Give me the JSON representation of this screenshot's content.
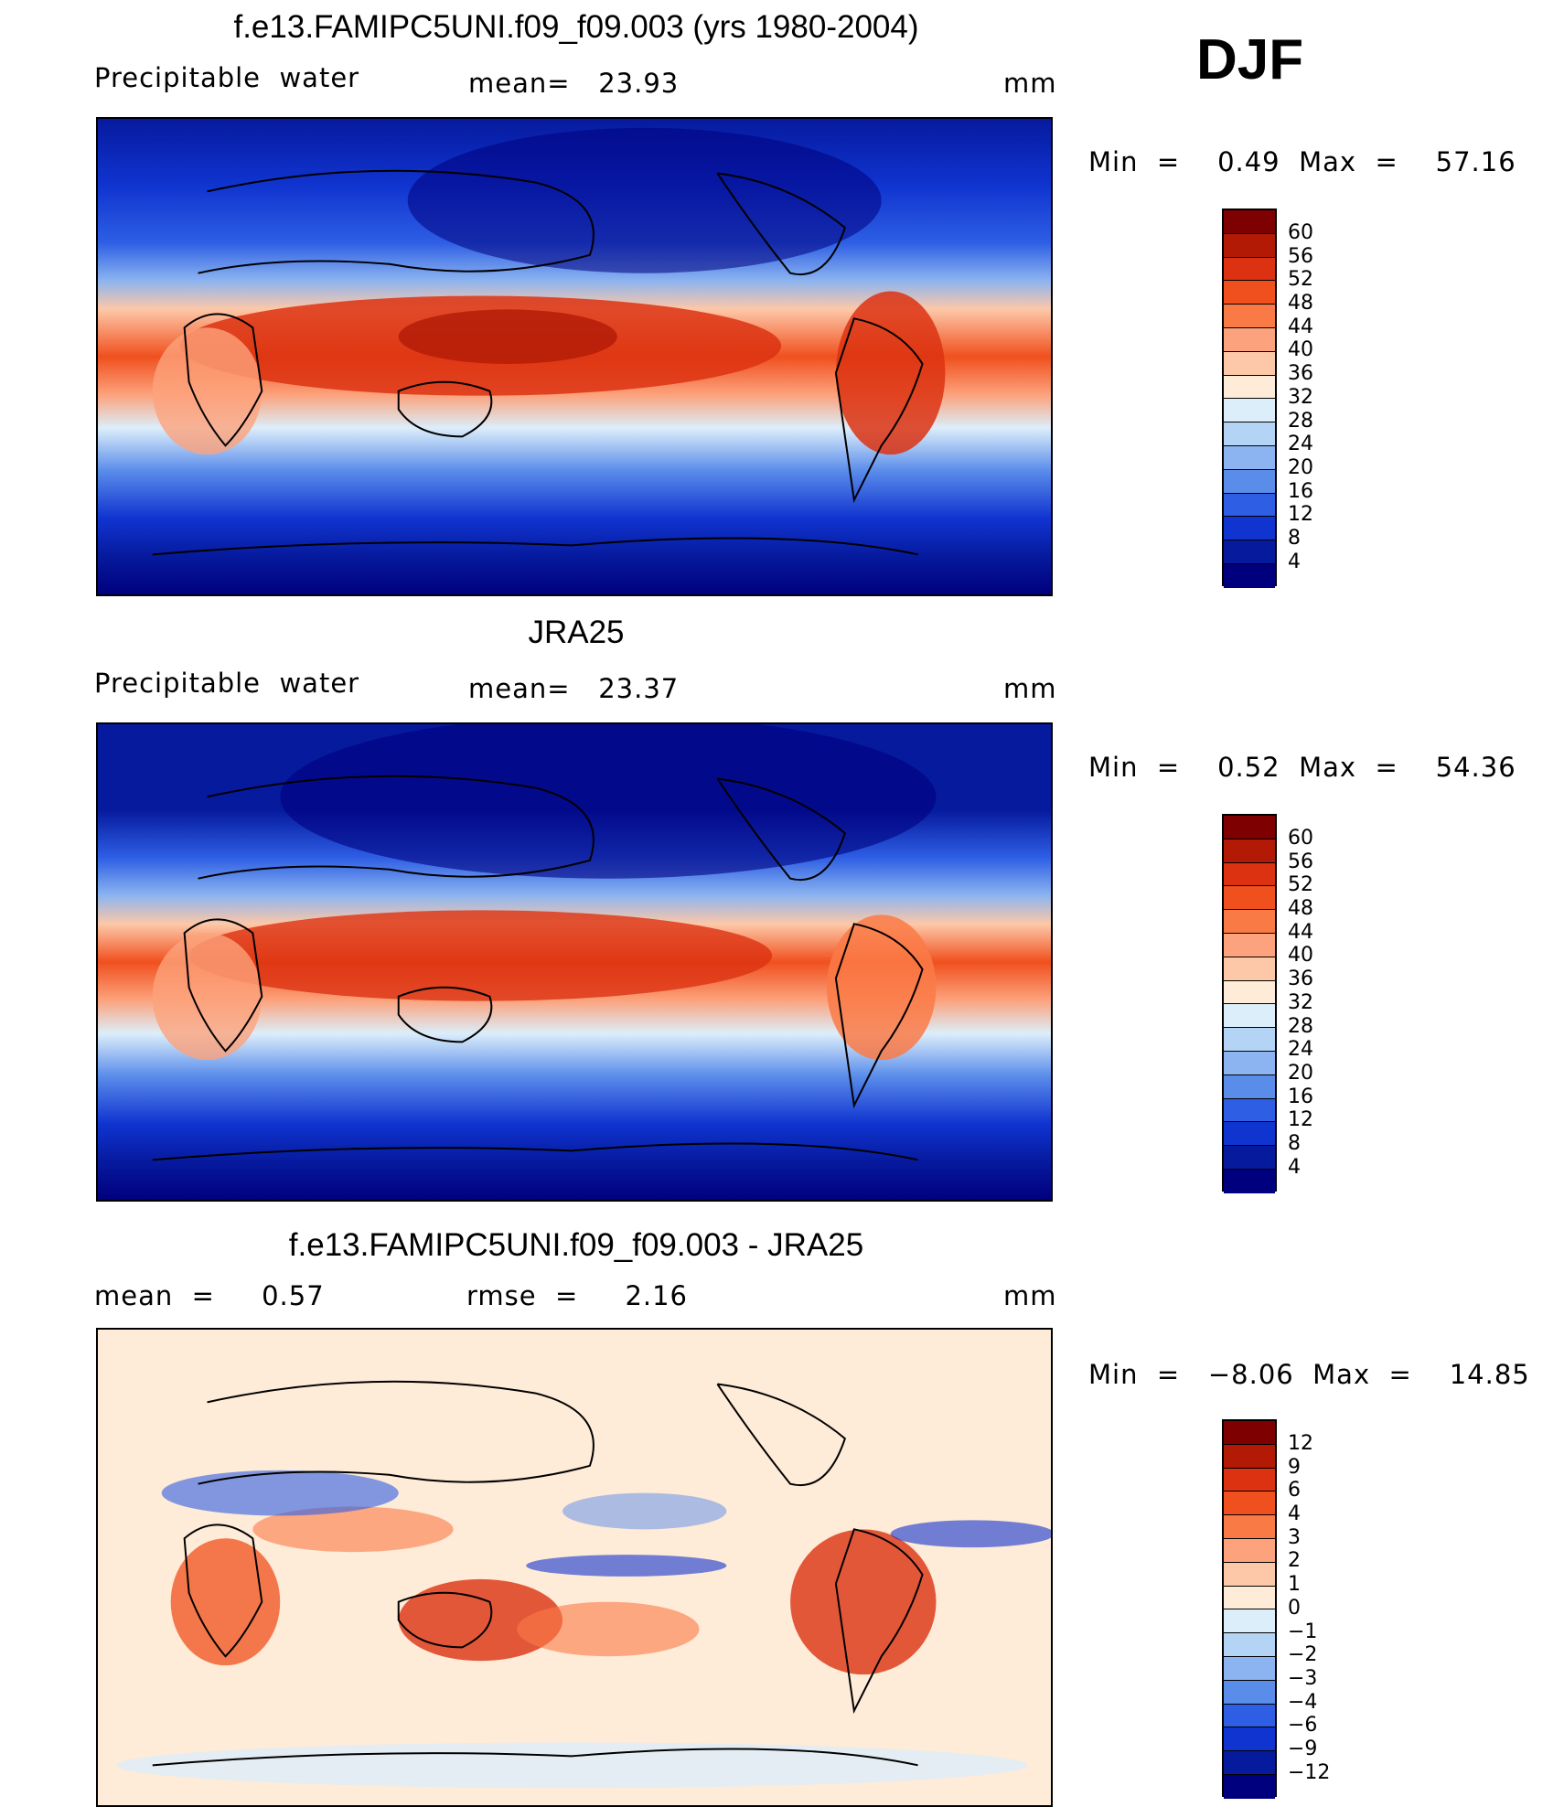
{
  "season_label": "DJF",
  "units_label": "mm",
  "panels": [
    {
      "title": "f.e13.FAMIPC5UNI.f09_f09.003 (yrs 1980-2004)",
      "left_label": "Precipitable  water",
      "center_label": "mean=   23.93",
      "minmax": "Min  =    0.49  Max  =    57.16",
      "colorbar": {
        "levels": [
          "60",
          "56",
          "52",
          "48",
          "44",
          "40",
          "36",
          "32",
          "28",
          "24",
          "20",
          "16",
          "12",
          "8",
          "4"
        ],
        "colors": [
          "#7f0000",
          "#b21a06",
          "#dc3212",
          "#f0501e",
          "#fa7a46",
          "#fca27c",
          "#fdc8a8",
          "#feebd8",
          "#dceefa",
          "#b4d4f5",
          "#8cb4f0",
          "#5a8cea",
          "#2d5ee4",
          "#1034d0",
          "#061a9e",
          "#00007e"
        ]
      }
    },
    {
      "title": "JRA25",
      "left_label": "Precipitable  water",
      "center_label": "mean=   23.37",
      "minmax": "Min  =    0.52  Max  =    54.36",
      "colorbar": {
        "levels": [
          "60",
          "56",
          "52",
          "48",
          "44",
          "40",
          "36",
          "32",
          "28",
          "24",
          "20",
          "16",
          "12",
          "8",
          "4"
        ],
        "colors": [
          "#7f0000",
          "#b21a06",
          "#dc3212",
          "#f0501e",
          "#fa7a46",
          "#fca27c",
          "#fdc8a8",
          "#feebd8",
          "#dceefa",
          "#b4d4f5",
          "#8cb4f0",
          "#5a8cea",
          "#2d5ee4",
          "#1034d0",
          "#061a9e",
          "#00007e"
        ]
      }
    },
    {
      "title": "f.e13.FAMIPC5UNI.f09_f09.003 - JRA25",
      "left_label": "mean  =     0.57",
      "center_label": "rmse  =     2.16",
      "minmax": "Min  =   −8.06  Max  =    14.85",
      "colorbar": {
        "levels": [
          "12",
          "9",
          "6",
          "4",
          "3",
          "2",
          "1",
          "0",
          "−1",
          "−2",
          "−3",
          "−4",
          "−6",
          "−9",
          "−12"
        ],
        "colors": [
          "#7f0000",
          "#b21a06",
          "#dc3212",
          "#f0501e",
          "#fa7a46",
          "#fca27c",
          "#fdc8a8",
          "#feebd8",
          "#dceefa",
          "#b4d4f5",
          "#8cb4f0",
          "#5a8cea",
          "#2d5ee4",
          "#1034d0",
          "#061a9e",
          "#00007e"
        ]
      }
    }
  ]
}
